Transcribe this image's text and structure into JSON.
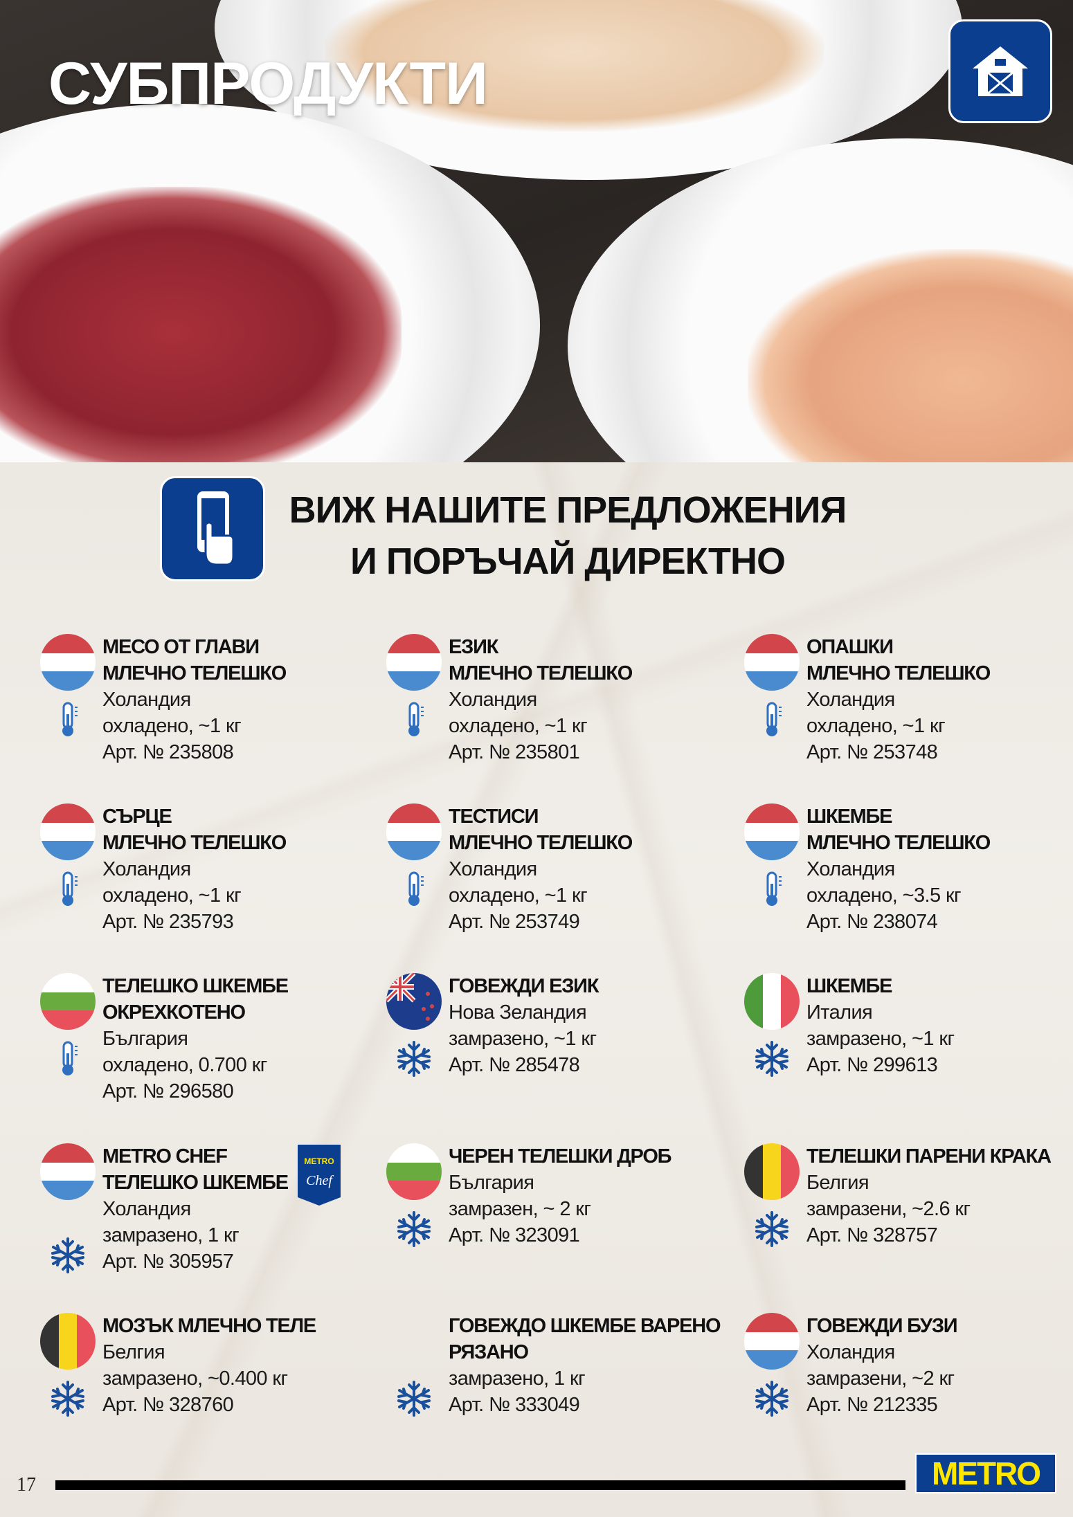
{
  "header": {
    "title": "СУБПРОДУКТИ",
    "barn_icon": "barn-icon"
  },
  "promo": {
    "line1": "ВИЖ НАШИТЕ ПРЕДЛОЖЕНИЯ",
    "line2": "И ПОРЪЧАЙ ДИРЕКТНО",
    "icon": "phone-tap-icon"
  },
  "colors": {
    "brand_blue": "#0b3e8e",
    "metro_yellow": "#ffe600"
  },
  "products": [
    {
      "title": [
        "МЕСО ОТ ГЛАВИ",
        "МЛЕЧНО ТЕЛЕШКО"
      ],
      "origin": "Холандия",
      "state": "охладено, ~1 кг",
      "art": "Арт. № 235808",
      "flag": "nl",
      "storage": "thermometer"
    },
    {
      "title": [
        "ЕЗИК",
        "МЛЕЧНО ТЕЛЕШКО"
      ],
      "origin": "Холандия",
      "state": "охладено, ~1 кг",
      "art": "Арт. № 235801",
      "flag": "nl",
      "storage": "thermometer"
    },
    {
      "title": [
        "ОПАШКИ",
        "МЛЕЧНО ТЕЛЕШКО"
      ],
      "origin": "Холандия",
      "state": "охладено, ~1 кг",
      "art": "Арт. № 253748",
      "flag": "nl",
      "storage": "thermometer"
    },
    {
      "title": [
        "СЪРЦЕ",
        "МЛЕЧНО ТЕЛЕШКО"
      ],
      "origin": "Холандия",
      "state": "охладено, ~1 кг",
      "art": "Арт. № 235793",
      "flag": "nl",
      "storage": "thermometer"
    },
    {
      "title": [
        "ТЕСТИСИ",
        "МЛЕЧНО ТЕЛЕШКО"
      ],
      "origin": "Холандия",
      "state": "охладено, ~1 кг",
      "art": "Арт. № 253749",
      "flag": "nl",
      "storage": "thermometer"
    },
    {
      "title": [
        "ШКЕМБЕ",
        "МЛЕЧНО ТЕЛЕШКО"
      ],
      "origin": "Холандия",
      "state": "охладено, ~3.5 кг",
      "art": "Арт. № 238074",
      "flag": "nl",
      "storage": "thermometer"
    },
    {
      "title": [
        "ТЕЛЕШКО ШКЕМБЕ",
        "ОКРЕХКОТЕНО"
      ],
      "origin": "България",
      "state": "охладено, 0.700 кг",
      "art": "Арт. № 296580",
      "flag": "bg",
      "storage": "thermometer"
    },
    {
      "title": [
        "ГОВЕЖДИ ЕЗИК"
      ],
      "origin": "Нова Зеландия",
      "state": "замразено, ~1 кг",
      "art": "Арт. № 285478",
      "flag": "nz",
      "storage": "snowflake"
    },
    {
      "title": [
        "ШКЕМБЕ"
      ],
      "origin": "Италия",
      "state": "замразено, ~1 кг",
      "art": "Арт. № 299613",
      "flag": "it",
      "storage": "snowflake"
    },
    {
      "title": [
        "METRO CHEF",
        "ТЕЛЕШКО ШКЕМБЕ"
      ],
      "origin": "Холандия",
      "state": "замразено, 1 кг",
      "art": "Арт. № 305957",
      "flag": "nl",
      "storage": "snowflake",
      "badge": {
        "top": "METRO",
        "bottom": "Chef"
      }
    },
    {
      "title": [
        " ЧЕРЕН ТЕЛЕШКИ ДРОБ"
      ],
      "origin": "България",
      "state": "замразен, ~ 2 кг",
      "art": "Арт. № 323091",
      "flag": "bg",
      "storage": "snowflake"
    },
    {
      "title": [
        "ТЕЛЕШКИ ПАРЕНИ КРАКА"
      ],
      "origin": "Белгия",
      "state": "замразени, ~2.6 кг",
      "art": "Арт. № 328757",
      "flag": "be",
      "storage": "snowflake"
    },
    {
      "title": [
        "МОЗЪК МЛЕЧНО ТЕЛЕ"
      ],
      "origin": "Белгия",
      "state": "замразено, ~0.400 кг",
      "art": "Арт. № 328760",
      "flag": "be",
      "storage": "snowflake"
    },
    {
      "title": [
        "ГОВЕЖДО ШКЕМБЕ ВАРЕНО",
        "РЯЗАНО"
      ],
      "state": "замразено, 1 кг",
      "art": "Арт. № 333049",
      "storage": "snowflake"
    },
    {
      "title": [
        "ГОВЕЖДИ БУЗИ"
      ],
      "origin": "Холандия",
      "state": "замразени, ~2 кг",
      "art": "Арт. № 212335",
      "flag": "nl",
      "storage": "snowflake"
    }
  ],
  "footer": {
    "page_number": "17",
    "logo": "METRO"
  }
}
